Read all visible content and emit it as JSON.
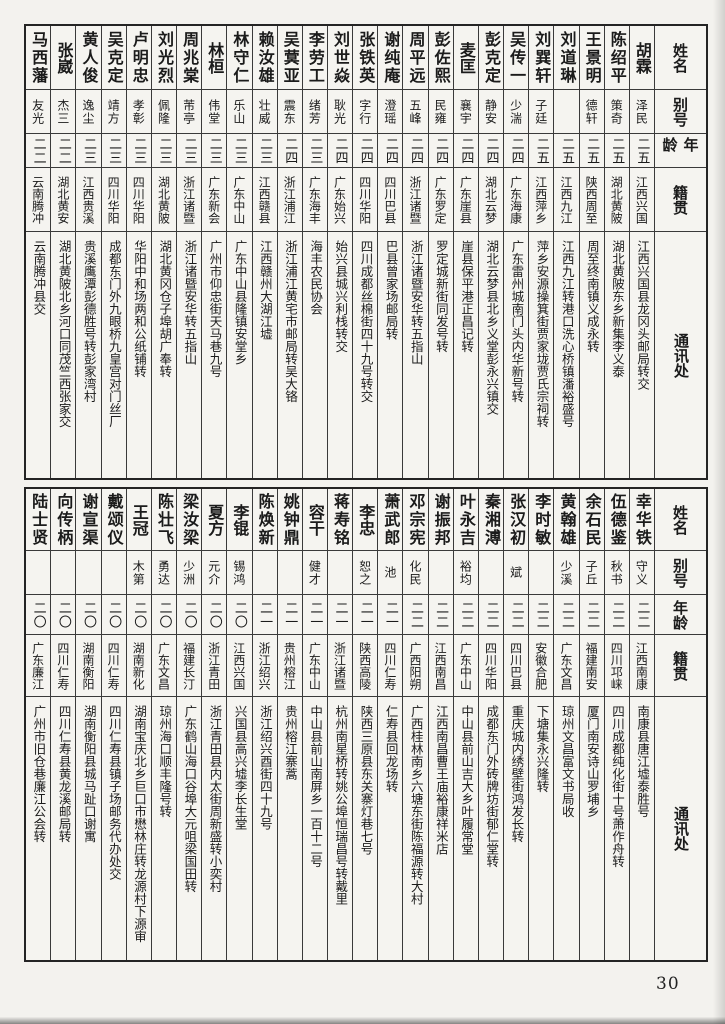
{
  "page": {
    "number": "30"
  },
  "headers": {
    "name": "姓名",
    "alias": "别号",
    "age": "年龄",
    "origin": "籍贯",
    "address": "通讯处"
  },
  "sections": [
    {
      "entries": [
        {
          "name": "胡霖",
          "alias": "泽民",
          "age": "二五",
          "origin": "江西兴国",
          "address": "江西兴国县龙冈头邮局转交"
        },
        {
          "name": "陈绍平",
          "alias": "策奇",
          "age": "二五",
          "origin": "湖北黄陂",
          "address": "湖北黄陂东乡新集李义泰"
        },
        {
          "name": "王景明",
          "alias": "德轩",
          "age": "二五",
          "origin": "陕西周至",
          "address": "周至终南镇义成永转"
        },
        {
          "name": "刘道琳",
          "alias": "",
          "age": "二五",
          "origin": "江西九江",
          "address": "江西九江转港口洗心桥镇潘裕盛号"
        },
        {
          "name": "刘巽轩",
          "alias": "子廷",
          "age": "二五",
          "origin": "江西萍乡",
          "address": "萍乡安源操箕街贾家垅贾氏宗祠转"
        },
        {
          "name": "吴传一",
          "alias": "少湍",
          "age": "二四",
          "origin": "广东海康",
          "address": "广东雷州城南门头内华新号转"
        },
        {
          "name": "彭克定",
          "alias": "静安",
          "age": "二四",
          "origin": "湖北云梦",
          "address": "湖北云梦县北乡义堂彭永兴镇交"
        },
        {
          "name": "麦匡",
          "alias": "襄宇",
          "age": "二四",
          "origin": "广东崖县",
          "address": "崖县保平港正昌记转"
        },
        {
          "name": "彭佐熙",
          "alias": "民雍",
          "age": "二四",
          "origin": "广东罗定",
          "address": "罗定城新街同发号转"
        },
        {
          "name": "周平远",
          "alias": "五峰",
          "age": "二四",
          "origin": "浙江诸暨",
          "address": "浙江诸暨安华转五指山"
        },
        {
          "name": "谢纯庵",
          "alias": "澄瑶",
          "age": "二四",
          "origin": "四川巴县",
          "address": "巴县曾家场邮局转"
        },
        {
          "name": "张铁英",
          "alias": "字行",
          "age": "二四",
          "origin": "四川华阳",
          "address": "四川成都丝棉街四十九号转交"
        },
        {
          "name": "刘世焱",
          "alias": "耿光",
          "age": "二四",
          "origin": "广东始兴",
          "address": "始兴县城兴利栈转交"
        },
        {
          "name": "李劳工",
          "alias": "绪芳",
          "age": "二三",
          "origin": "广东海丰",
          "address": "海丰农民协会"
        },
        {
          "name": "吴蓂亚",
          "alias": "震东",
          "age": "二四",
          "origin": "浙江浦江",
          "address": "浙江浦江黄宅市邮局转吴大铬"
        },
        {
          "name": "赖汝雄",
          "alias": "壮威",
          "age": "二三",
          "origin": "江西赣县",
          "address": "江西赣州大湖江墟"
        },
        {
          "name": "林守仁",
          "alias": "乐山",
          "age": "二三",
          "origin": "广东中山",
          "address": "广东中山县隆镇安堂乡"
        },
        {
          "name": "林桓",
          "alias": "伟堂",
          "age": "二三",
          "origin": "广东新会",
          "address": "广州市仰忠街天马巷九号"
        },
        {
          "name": "周兆棠",
          "alias": "芾亭",
          "age": "二三",
          "origin": "浙江诸暨",
          "address": "浙江诸暨安华转五指山"
        },
        {
          "name": "刘光烈",
          "alias": "佩隆",
          "age": "二三",
          "origin": "湖北黄陂",
          "address": "湖北黄冈仓子埠胡广奉转"
        },
        {
          "name": "卢明忠",
          "alias": "孝彰",
          "age": "二三",
          "origin": "四川华阳",
          "address": "华阳中和场两和公纸铺转"
        },
        {
          "name": "吴克定",
          "alias": "靖方",
          "age": "二三",
          "origin": "四川华阳",
          "address": "成都东门外九眼桥九皇宫对门丝厂"
        },
        {
          "name": "黄人俊",
          "alias": "逸尘",
          "age": "二三",
          "origin": "江西贵溪",
          "address": "贵溪鹰潭彭德胜号转彭家湾村"
        },
        {
          "name": "张崴",
          "alias": "杰三",
          "age": "二二",
          "origin": "湖北黄安",
          "address": "湖北黄陂北乡河口同茂竺西张家交"
        },
        {
          "name": "马西藩",
          "alias": "友光",
          "age": "二二",
          "origin": "云南腾冲",
          "address": "云南腾冲县交"
        }
      ]
    },
    {
      "entries": [
        {
          "name": "幸华铁",
          "alias": "守义",
          "age": "二二",
          "origin": "江西南康",
          "address": "南康县唐江墟泰胜号"
        },
        {
          "name": "伍德鉴",
          "alias": "秋书",
          "age": "二二",
          "origin": "四川邛崃",
          "address": "四川成都纯化街十号萧作舟转"
        },
        {
          "name": "余石民",
          "alias": "子丘",
          "age": "二二",
          "origin": "福建南安",
          "address": "厦门南安诗山罗埔乡"
        },
        {
          "name": "黄翰雄",
          "alias": "少溪",
          "age": "二二",
          "origin": "广东文昌",
          "address": "琼州文昌富文书局收"
        },
        {
          "name": "李时敏",
          "alias": "",
          "age": "二二",
          "origin": "安徽合肥",
          "address": "下塘集永兴隆转"
        },
        {
          "name": "张汉初",
          "alias": "斌",
          "age": "二二",
          "origin": "四川巴县",
          "address": "重庆城内绣壁街鸿发长转"
        },
        {
          "name": "秦湘溥",
          "alias": "",
          "age": "二二",
          "origin": "四川华阳",
          "address": "成都东门外砖牌坊街郁仁堂转"
        },
        {
          "name": "叶永吉",
          "alias": "裕均",
          "age": "二二",
          "origin": "广东中山",
          "address": "中山县前山吉大乡叶履常堂"
        },
        {
          "name": "谢振邦",
          "alias": "",
          "age": "二二",
          "origin": "江西南昌",
          "address": "江西南昌曹王庙裕康祥米店"
        },
        {
          "name": "邓宗宪",
          "alias": "化民",
          "age": "二二",
          "origin": "广西阳朔",
          "address": "广西桂林南乡六塘东街陈福源转大村"
        },
        {
          "name": "萧武郎",
          "alias": "池",
          "age": "二一",
          "origin": "四川仁寿",
          "address": "仁寿县回龙场转"
        },
        {
          "name": "李忠",
          "alias": "恕之",
          "age": "二一",
          "origin": "陕西高陵",
          "address": "陕西三原县东关寨灯巷七号"
        },
        {
          "name": "蒋寿铭",
          "alias": "",
          "age": "二一",
          "origin": "浙江诸暨",
          "address": "杭州南星桥转姚公埠恒瑞昌号转戴里"
        },
        {
          "name": "容干",
          "alias": "健才",
          "age": "二一",
          "origin": "广东中山",
          "address": "中山县前山南屏乡一百十二号"
        },
        {
          "name": "姚钟鼎",
          "alias": "",
          "age": "二一",
          "origin": "贵州榕江",
          "address": "贵州榕江寨蒿"
        },
        {
          "name": "陈焕新",
          "alias": "",
          "age": "二一",
          "origin": "浙江绍兴",
          "address": "浙江绍兴酉街四十九号"
        },
        {
          "name": "李锟",
          "alias": "锡鸿",
          "age": "二〇",
          "origin": "江西兴国",
          "address": "兴国县高兴墟李长生堂"
        },
        {
          "name": "夏方",
          "alias": "元介",
          "age": "二〇",
          "origin": "浙江青田",
          "address": "浙江青田县内太街周新盛转小奕村"
        },
        {
          "name": "梁汝梁",
          "alias": "少洲",
          "age": "二〇",
          "origin": "福建长汀",
          "address": "广东鹤山海口谷埠大元咀梁国田转"
        },
        {
          "name": "陈壮飞",
          "alias": "勇达",
          "age": "二〇",
          "origin": "广东文昌",
          "address": "琼州海口顺丰隆号转"
        },
        {
          "name": "王冠",
          "alias": "木第",
          "age": "二〇",
          "origin": "湖南新化",
          "address": "湖南宝庆北乡巨口市懋林庄转龙源村下源审"
        },
        {
          "name": "戴颂仪",
          "alias": "",
          "age": "二〇",
          "origin": "四川仁寿",
          "address": "四川仁寿县镇子场邮务代办处交"
        },
        {
          "name": "谢宣渠",
          "alias": "",
          "age": "二〇",
          "origin": "湖南衡阳",
          "address": "湖南衡阳县城马趾口谢寓"
        },
        {
          "name": "向传柄",
          "alias": "",
          "age": "二〇",
          "origin": "四川仁寿",
          "address": "四川仁寿县黄龙溪邮局转"
        },
        {
          "name": "陆士贤",
          "alias": "",
          "age": "二〇",
          "origin": "广东廉江",
          "address": "广州市旧仓巷廉江公会转"
        }
      ]
    }
  ]
}
